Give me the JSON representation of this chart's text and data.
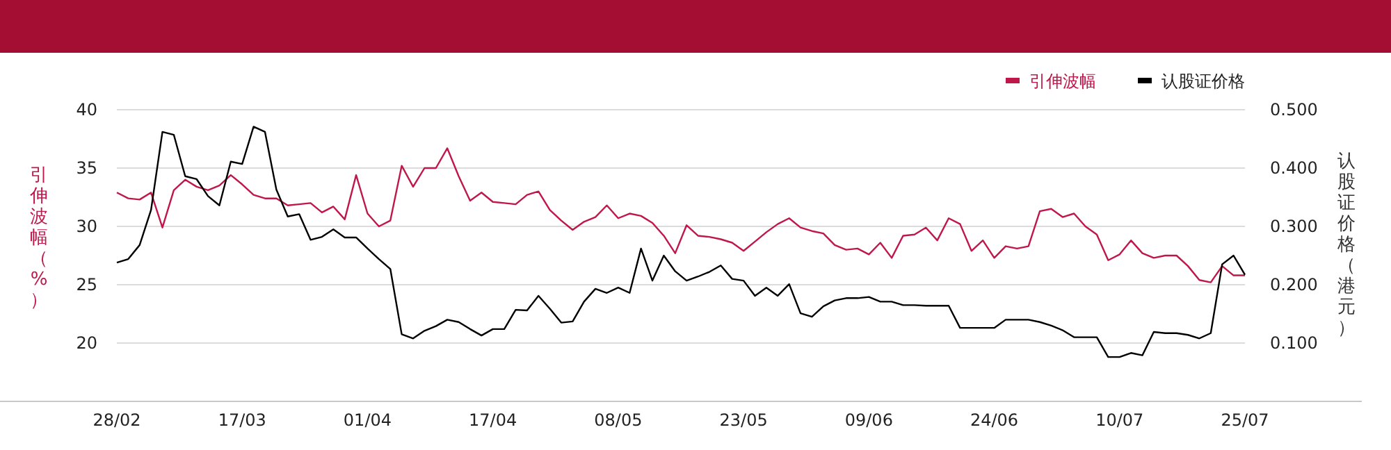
{
  "chart_data": {
    "type": "line",
    "categories": [
      "28/02",
      null,
      null,
      null,
      null,
      null,
      null,
      null,
      null,
      null,
      null,
      "17/03",
      null,
      null,
      null,
      null,
      null,
      null,
      null,
      null,
      null,
      null,
      "01/04",
      null,
      null,
      null,
      null,
      null,
      null,
      null,
      null,
      null,
      null,
      "17/04",
      null,
      null,
      null,
      null,
      null,
      null,
      null,
      null,
      null,
      null,
      "08/05",
      null,
      null,
      null,
      null,
      null,
      null,
      null,
      null,
      null,
      null,
      "23/05",
      null,
      null,
      null,
      null,
      null,
      null,
      null,
      null,
      null,
      null,
      "09/06",
      null,
      null,
      null,
      null,
      null,
      null,
      null,
      null,
      null,
      null,
      "24/06",
      null,
      null,
      null,
      null,
      null,
      null,
      null,
      null,
      null,
      null,
      "10/07",
      null,
      null,
      null,
      null,
      null,
      null,
      null,
      null,
      null,
      null,
      "25/07"
    ],
    "series": [
      {
        "name": "引伸波幅",
        "color": "#c0174a",
        "values": [
          32.9,
          32.4,
          32.3,
          32.9,
          29.9,
          33.1,
          34.0,
          33.4,
          33.1,
          33.5,
          34.4,
          33.6,
          32.7,
          32.4,
          32.4,
          31.8,
          31.9,
          32.0,
          31.2,
          31.7,
          30.6,
          34.4,
          31.1,
          30.0,
          30.5,
          35.2,
          33.4,
          35.0,
          35.0,
          36.7,
          34.3,
          32.2,
          32.9,
          32.1,
          32.0,
          31.9,
          32.7,
          33.0,
          31.4,
          30.5,
          29.7,
          30.4,
          30.8,
          31.8,
          30.7,
          31.1,
          30.9,
          30.3,
          29.2,
          27.7,
          30.1,
          29.2,
          29.1,
          28.9,
          28.6,
          27.9,
          28.7,
          29.5,
          30.2,
          30.7,
          29.9,
          29.6,
          29.4,
          28.4,
          28.0,
          28.1,
          27.6,
          28.6,
          27.3,
          29.2,
          29.3,
          29.9,
          28.8,
          30.7,
          30.2,
          27.9,
          28.8,
          27.3,
          28.3,
          28.1,
          28.3,
          31.3,
          31.5,
          30.8,
          31.1,
          30.0,
          29.3,
          27.1,
          27.6,
          28.8,
          27.7,
          27.3,
          27.5,
          27.5,
          26.6,
          25.4,
          25.2,
          26.6,
          25.8,
          25.8
        ]
      },
      {
        "name": "认股证价格",
        "color": "#000000",
        "axis": "y2",
        "values": [
          0.238,
          0.244,
          0.268,
          0.328,
          0.462,
          0.457,
          0.386,
          0.381,
          0.352,
          0.336,
          0.411,
          0.407,
          0.471,
          0.462,
          0.363,
          0.317,
          0.321,
          0.277,
          0.282,
          0.295,
          0.281,
          0.281,
          0.262,
          0.244,
          0.227,
          0.115,
          0.108,
          0.121,
          0.129,
          0.14,
          0.136,
          0.124,
          0.113,
          0.124,
          0.124,
          0.157,
          0.156,
          0.181,
          0.159,
          0.135,
          0.137,
          0.171,
          0.193,
          0.186,
          0.195,
          0.186,
          0.262,
          0.207,
          0.25,
          0.223,
          0.207,
          0.214,
          0.222,
          0.233,
          0.21,
          0.207,
          0.181,
          0.195,
          0.181,
          0.201,
          0.151,
          0.145,
          0.163,
          0.173,
          0.177,
          0.177,
          0.179,
          0.171,
          0.171,
          0.165,
          0.165,
          0.164,
          0.164,
          0.164,
          0.126,
          0.126,
          0.126,
          0.126,
          0.14,
          0.14,
          0.14,
          0.136,
          0.13,
          0.122,
          0.11,
          0.11,
          0.11,
          0.076,
          0.076,
          0.083,
          0.079,
          0.119,
          0.117,
          0.117,
          0.114,
          0.108,
          0.117,
          0.235,
          0.25,
          0.217
        ]
      }
    ],
    "ylabel": "引伸波幅（%）",
    "y2label": "认股证价格（港元）",
    "ylim": [
      15,
      40
    ],
    "yticks": [
      20,
      25,
      30,
      35,
      40
    ],
    "y2lim": [
      0,
      0.5
    ],
    "y2ticks": [
      {
        "value": 0.1,
        "label": "0.100"
      },
      {
        "value": 0.2,
        "label": "0.200"
      },
      {
        "value": 0.3,
        "label": "0.300"
      },
      {
        "value": 0.4,
        "label": "0.400"
      },
      {
        "value": 0.5,
        "label": "0.500"
      }
    ],
    "grid": "y",
    "legend": "top right",
    "marker": "none",
    "line_style": "solid"
  }
}
